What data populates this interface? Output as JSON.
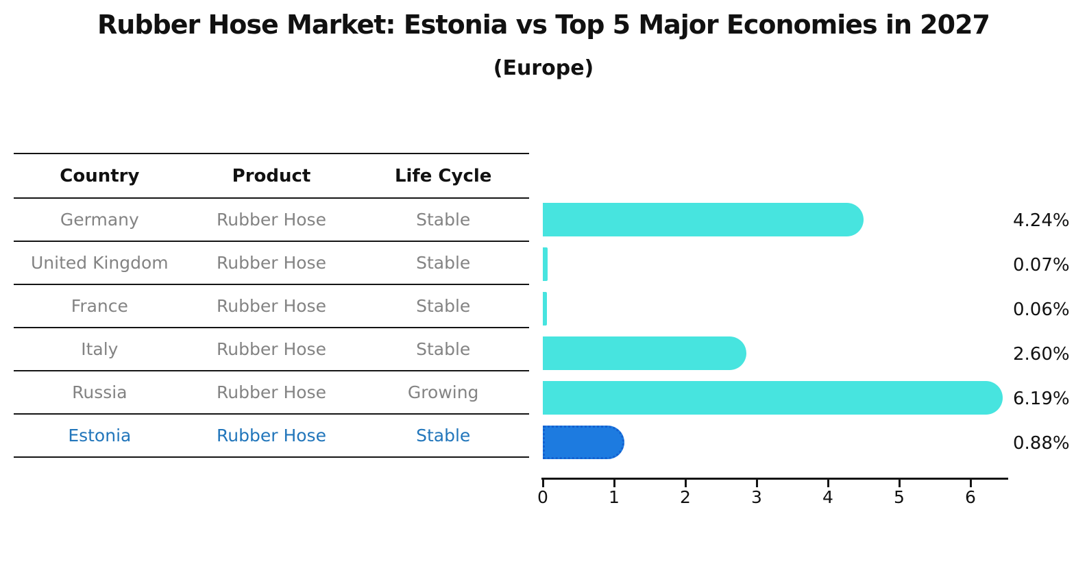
{
  "title": "Rubber Hose Market: Estonia vs Top 5 Major Economies in 2027",
  "subtitle": "(Europe)",
  "table": {
    "headers": {
      "country": "Country",
      "product": "Product",
      "life_cycle": "Life Cycle"
    },
    "rows": [
      {
        "country": "Germany",
        "product": "Rubber Hose",
        "life_cycle": "Stable"
      },
      {
        "country": "United Kingdom",
        "product": "Rubber Hose",
        "life_cycle": "Stable"
      },
      {
        "country": "France",
        "product": "Rubber Hose",
        "life_cycle": "Stable"
      },
      {
        "country": "Italy",
        "product": "Rubber Hose",
        "life_cycle": "Stable"
      },
      {
        "country": "Russia",
        "product": "Rubber Hose",
        "life_cycle": "Growing"
      },
      {
        "country": "Estonia",
        "product": "Rubber Hose",
        "life_cycle": "Stable"
      }
    ]
  },
  "chart_data": {
    "type": "bar",
    "orientation": "horizontal",
    "categories": [
      "Germany",
      "United Kingdom",
      "France",
      "Italy",
      "Russia",
      "Estonia"
    ],
    "values": [
      4.24,
      0.07,
      0.06,
      2.6,
      6.19,
      0.88
    ],
    "value_labels": [
      "4.24%",
      "0.07%",
      "0.06%",
      "2.60%",
      "6.19%",
      "0.88%"
    ],
    "xticks": [
      "0",
      "1",
      "2",
      "3",
      "4",
      "5",
      "6"
    ],
    "xlim": [
      0,
      6.5
    ],
    "grid": false,
    "legend": false,
    "bar_color": "#47e4df",
    "highlight_index": 5,
    "highlight_color": "#1d7be0",
    "highlight_border_color": "#1360d0",
    "highlight_text_color": "#2276bb"
  }
}
